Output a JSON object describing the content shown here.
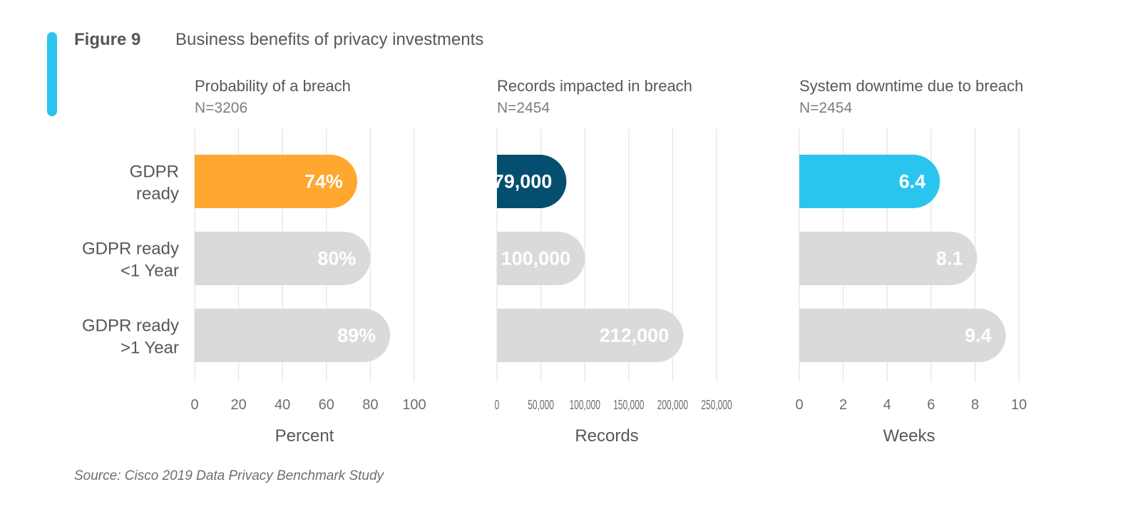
{
  "figure": {
    "label": "Figure 9",
    "title": "Business benefits of privacy investments",
    "source": "Source: Cisco 2019 Data Privacy Benchmark Study"
  },
  "colors": {
    "accent_bar": "#2ac5ee",
    "gray_bar": "#d9dadb",
    "gridline": "#e3e4e5",
    "text": "#55575b"
  },
  "chart_data": [
    {
      "type": "bar",
      "orientation": "horizontal",
      "title": "Probability of a breach",
      "subtitle": "N=3206",
      "categories": [
        "GDPR ready",
        "GDPR ready <1 Year",
        "GDPR ready >1 Year"
      ],
      "category_lines": [
        [
          "GDPR",
          "ready"
        ],
        [
          "GDPR ready",
          "<1 Year"
        ],
        [
          "GDPR ready",
          ">1 Year"
        ]
      ],
      "values": [
        74,
        80,
        89
      ],
      "value_labels": [
        "74%",
        "80%",
        "89%"
      ],
      "bar_colors": [
        "#ffa72e",
        "#d9dadb",
        "#d9dadb"
      ],
      "xlabel": "Percent",
      "xlim": [
        0,
        100
      ],
      "ticks": [
        0,
        20,
        40,
        60,
        80,
        100
      ],
      "tick_labels": [
        "0",
        "20",
        "40",
        "60",
        "80",
        "100"
      ],
      "grid": true
    },
    {
      "type": "bar",
      "orientation": "horizontal",
      "title": "Records impacted in breach",
      "subtitle": "N=2454",
      "categories": [
        "GDPR ready",
        "GDPR ready <1 Year",
        "GDPR ready >1 Year"
      ],
      "values": [
        79000,
        100000,
        212000
      ],
      "value_labels": [
        "79,000",
        "100,000",
        "212,000"
      ],
      "bar_colors": [
        "#044e6f",
        "#d9dadb",
        "#d9dadb"
      ],
      "xlabel": "Records",
      "xlim": [
        0,
        250000
      ],
      "ticks": [
        0,
        50000,
        100000,
        150000,
        200000,
        250000
      ],
      "tick_labels": [
        "0",
        "50,000",
        "100,000",
        "150,000",
        "200,000",
        "250,000"
      ],
      "grid": true
    },
    {
      "type": "bar",
      "orientation": "horizontal",
      "title": "System downtime due to breach",
      "subtitle": "N=2454",
      "categories": [
        "GDPR ready",
        "GDPR ready <1 Year",
        "GDPR ready >1 Year"
      ],
      "values": [
        6.4,
        8.1,
        9.4
      ],
      "value_labels": [
        "6.4",
        "8.1",
        "9.4"
      ],
      "bar_colors": [
        "#2ac5ee",
        "#d9dadb",
        "#d9dadb"
      ],
      "xlabel": "Weeks",
      "xlim": [
        0,
        10
      ],
      "ticks": [
        0,
        2,
        4,
        6,
        8,
        10
      ],
      "tick_labels": [
        "0",
        "2",
        "4",
        "6",
        "8",
        "10"
      ],
      "grid": true
    }
  ]
}
